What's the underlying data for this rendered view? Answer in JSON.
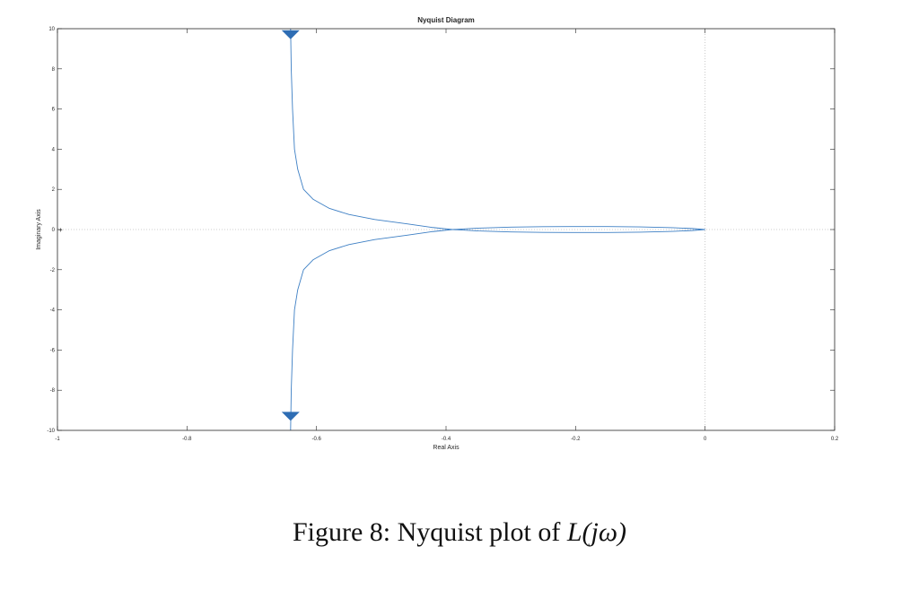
{
  "chart_data": {
    "type": "line",
    "title": "Nyquist Diagram",
    "xlabel": "Real Axis",
    "ylabel": "Imaginary Axis",
    "xlim": [
      -1,
      0.2
    ],
    "ylim": [
      -10,
      10
    ],
    "xticks": [
      -1,
      -0.8,
      -0.6,
      -0.4,
      -0.2,
      0,
      0.2
    ],
    "xtick_labels": [
      "-1",
      "-0.8",
      "-0.6",
      "-0.4",
      "-0.2",
      "0",
      "0.2"
    ],
    "yticks": [
      -10,
      -8,
      -6,
      -4,
      -2,
      0,
      2,
      4,
      6,
      8,
      10
    ],
    "ytick_labels": [
      "-10",
      "-8",
      "-6",
      "-4",
      "-2",
      "0",
      "2",
      "4",
      "6",
      "8",
      "10"
    ],
    "grid": false,
    "zero_lines": true,
    "colors": {
      "curve": "#3d7fc4",
      "arrow": "#2e6db4",
      "axes": "#262626",
      "zero_line": "#bdbdbd",
      "critical_point": "#d03a1f"
    },
    "series": [
      {
        "values": [
          [
            -0.64,
            10
          ],
          [
            -0.639,
            8
          ],
          [
            -0.637,
            6
          ],
          [
            -0.634,
            4
          ],
          [
            -0.629,
            3
          ],
          [
            -0.62,
            2
          ],
          [
            -0.605,
            1.5
          ],
          [
            -0.58,
            1.05
          ],
          [
            -0.55,
            0.75
          ],
          [
            -0.51,
            0.5
          ],
          [
            -0.46,
            0.28
          ],
          [
            -0.42,
            0.1
          ],
          [
            -0.39,
            0
          ],
          [
            -0.35,
            -0.07
          ],
          [
            -0.3,
            -0.12
          ],
          [
            -0.25,
            -0.14
          ],
          [
            -0.2,
            -0.15
          ],
          [
            -0.15,
            -0.15
          ],
          [
            -0.1,
            -0.13
          ],
          [
            -0.05,
            -0.09
          ],
          [
            -0.02,
            -0.05
          ],
          [
            0,
            0
          ]
        ]
      },
      {
        "values": [
          [
            -0.64,
            -10
          ],
          [
            -0.639,
            -8
          ],
          [
            -0.637,
            -6
          ],
          [
            -0.634,
            -4
          ],
          [
            -0.629,
            -3
          ],
          [
            -0.62,
            -2
          ],
          [
            -0.605,
            -1.5
          ],
          [
            -0.58,
            -1.05
          ],
          [
            -0.55,
            -0.75
          ],
          [
            -0.51,
            -0.5
          ],
          [
            -0.46,
            -0.28
          ],
          [
            -0.42,
            -0.1
          ],
          [
            -0.39,
            0
          ],
          [
            -0.35,
            0.07
          ],
          [
            -0.3,
            0.12
          ],
          [
            -0.25,
            0.14
          ],
          [
            -0.2,
            0.15
          ],
          [
            -0.15,
            0.15
          ],
          [
            -0.1,
            0.13
          ],
          [
            -0.05,
            0.09
          ],
          [
            -0.02,
            0.05
          ],
          [
            0,
            0
          ]
        ]
      }
    ],
    "arrows": [
      {
        "x": -0.64,
        "y": 9.7,
        "direction": "down"
      },
      {
        "x": -0.64,
        "y": -9.3,
        "direction": "down"
      }
    ],
    "critical_point": {
      "x": -1,
      "y": 0
    }
  },
  "caption": {
    "prefix": "Figure 8:  Nyquist plot of ",
    "math": "L(jω)"
  }
}
